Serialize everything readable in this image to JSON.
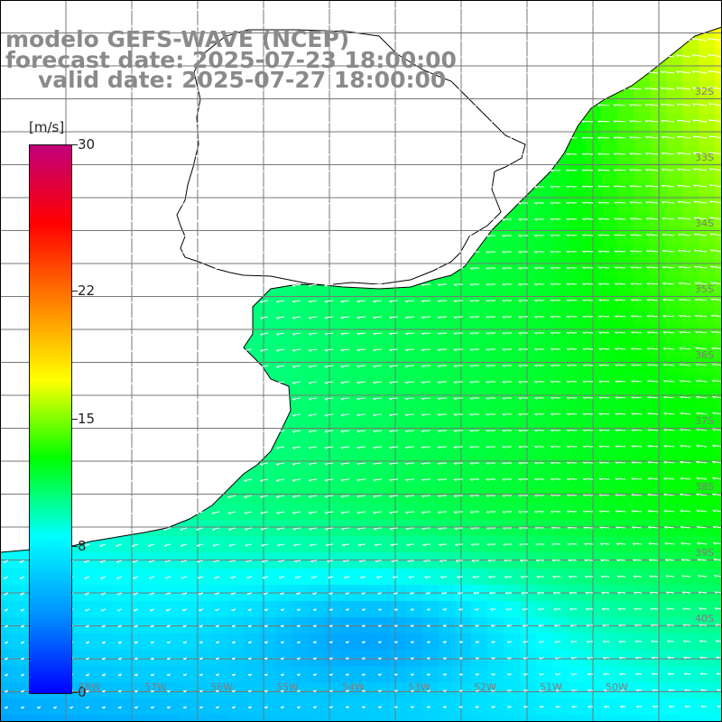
{
  "title": {
    "line1": "modelo GEFS-WAVE (NCEP)",
    "line2": "forecast date: 2025-07-23 18:00:00",
    "line3": "valid date: 2025-07-27 18:00:00"
  },
  "colorbar": {
    "unit": "[m/s]",
    "ticks": [
      "30",
      "22",
      "15",
      "8",
      "0"
    ],
    "tick_values": [
      30,
      22,
      15,
      8,
      0
    ],
    "min": 0,
    "max": 30,
    "stops": [
      "#0000ff",
      "#0090ff",
      "#00ffff",
      "#00ff00",
      "#ffff00",
      "#ff8000",
      "#ff0000",
      "#c0007a"
    ]
  },
  "map": {
    "colors": {
      "land": "#ffffff",
      "coast": "#000000",
      "grid": "#777777",
      "arrow": "#ffffff"
    },
    "lat_labels": [
      "32S",
      "33S",
      "34S",
      "35S",
      "36S",
      "37S",
      "38S",
      "39S",
      "40S"
    ],
    "lon_labels": [
      "58W",
      "57W",
      "56W",
      "55W",
      "54W",
      "53W",
      "52W",
      "51W",
      "50W"
    ]
  }
}
